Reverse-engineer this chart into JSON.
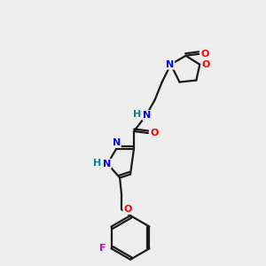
{
  "background_color": "#eeeeee",
  "bond_color": "#1a1a1a",
  "atom_colors": {
    "N": "#0000ee",
    "O": "#ff0000",
    "F": "#cc00cc",
    "NH": "#008888",
    "C": "#1a1a1a"
  },
  "lw": 1.6,
  "fontsize": 8.0
}
